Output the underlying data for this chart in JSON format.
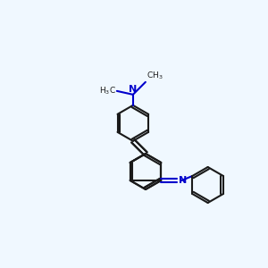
{
  "bg_color": "#f0f8ff",
  "bond_color": "#1a1a1a",
  "nitrogen_color": "#0000cc",
  "text_color": "#1a1a1a",
  "figsize": [
    3.0,
    3.0
  ],
  "dpi": 100,
  "bl": 20
}
